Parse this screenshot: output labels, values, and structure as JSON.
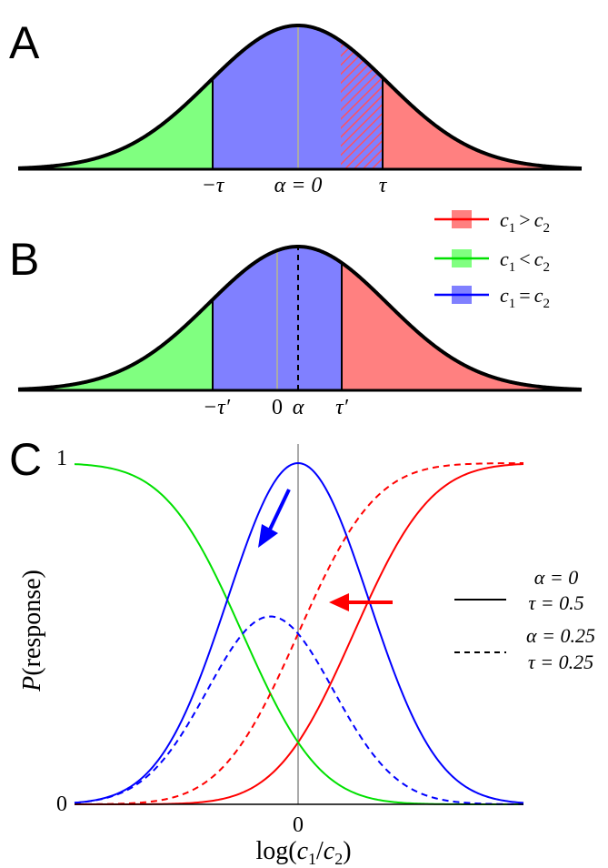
{
  "panel_labels": {
    "a": "A",
    "b": "B",
    "c": "C"
  },
  "panel_a": {
    "ticks": {
      "neg_tau": "−τ",
      "alpha_eq_0": "α = 0",
      "tau": "τ"
    }
  },
  "panel_b": {
    "ticks": {
      "neg_tau_prime": "−τ′",
      "zero": "0",
      "alpha": "α",
      "tau_prime": "τ′"
    }
  },
  "legend_ab": [
    {
      "label": "c1 > c2",
      "c1": "c",
      "sub1": "1",
      "op": ">",
      "c2": "c",
      "sub2": "2",
      "color": "#ff0000",
      "fill": "#ff8080"
    },
    {
      "label": "c1 < c2",
      "c1": "c",
      "sub1": "1",
      "op": "<",
      "c2": "c",
      "sub2": "2",
      "color": "#00e000",
      "fill": "#80ff80"
    },
    {
      "label": "c1 = c2",
      "c1": "c",
      "sub1": "1",
      "op": "=",
      "c2": "c",
      "sub2": "2",
      "color": "#0000ff",
      "fill": "#8080ff"
    }
  ],
  "panel_c": {
    "y_tick_top": "1",
    "y_tick_bottom": "0",
    "x_tick_zero": "0",
    "ylabel_italic": "P",
    "ylabel_rest": "(response)",
    "xlabel_pre": "log(",
    "xlabel_c1": "c",
    "xlabel_sub1": "1",
    "xlabel_mid": "/",
    "xlabel_c2": "c",
    "xlabel_sub2": "2",
    "xlabel_post": ")",
    "legend": [
      {
        "style": "solid",
        "line1": "α = 0",
        "line2": "τ = 0.5"
      },
      {
        "style": "dashed",
        "line1": "α = 0.25",
        "line2": "τ = 0.25"
      }
    ]
  },
  "colors": {
    "red": "#ff0000",
    "green": "#00e000",
    "blue": "#0000ff",
    "red_fill": "#ff8080",
    "green_fill": "#80ff80",
    "blue_fill": "#8080ff",
    "gray": "#aaaaaa"
  },
  "chart_data": {
    "type": "line",
    "xlabel": "log(c1/c2)",
    "ylabel": "P(response)",
    "x_ticks": [
      "0"
    ],
    "y_ticks": [
      "0",
      "1"
    ],
    "ylim": [
      0,
      1
    ],
    "series": [
      {
        "name": "c1 > c2",
        "color": "#ff0000",
        "style": "solid",
        "alpha": 0,
        "tau": 0.5
      },
      {
        "name": "c1 < c2",
        "color": "#00e000",
        "style": "solid",
        "alpha": 0,
        "tau": 0.5
      },
      {
        "name": "c1 = c2",
        "color": "#0000ff",
        "style": "solid",
        "alpha": 0,
        "tau": 0.5
      },
      {
        "name": "c1 > c2",
        "color": "#ff0000",
        "style": "dashed",
        "alpha": 0.25,
        "tau": 0.25
      },
      {
        "name": "c1 = c2",
        "color": "#0000ff",
        "style": "dashed",
        "alpha": 0.25,
        "tau": 0.25
      }
    ]
  }
}
